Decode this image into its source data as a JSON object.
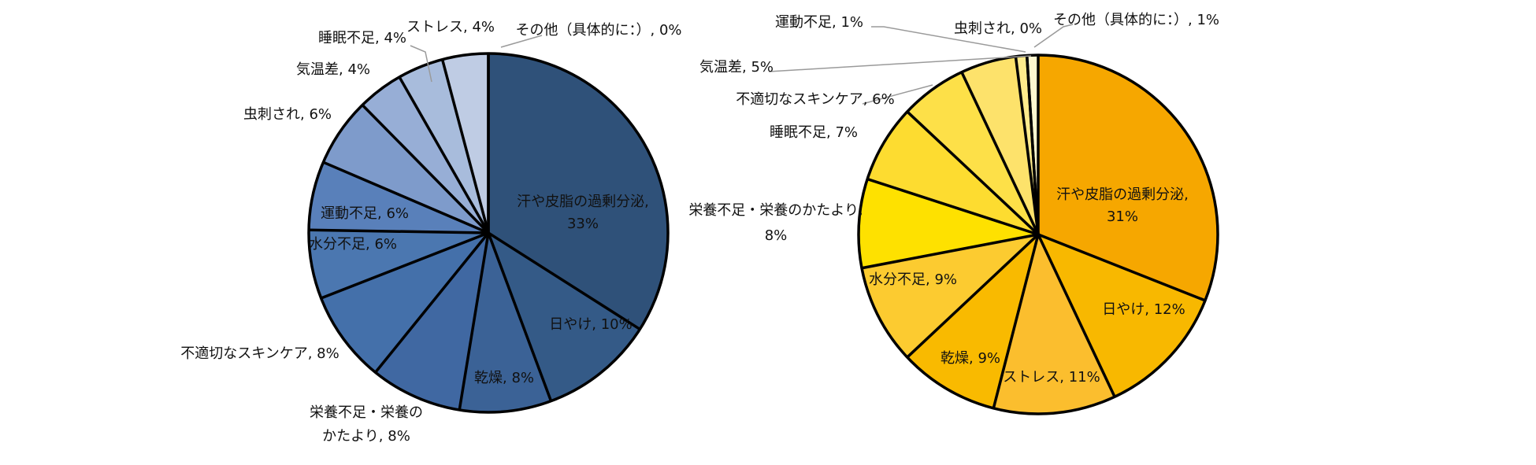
{
  "chart_data": [
    {
      "type": "pie",
      "slices": [
        {
          "label": "汗や皮脂の過剰分泌",
          "percent": 33,
          "label_text": [
            "汗や皮脂の過剰分泌,",
            "33%"
          ],
          "color": "#2F5179"
        },
        {
          "label": "日やけ",
          "percent": 10,
          "label_text": [
            "日やけ, 10%"
          ],
          "color": "#345A87"
        },
        {
          "label": "乾燥",
          "percent": 8,
          "label_text": [
            "乾燥, 8%"
          ],
          "color": "#3B6296"
        },
        {
          "label": "栄養不足・栄養のかたより",
          "percent": 8,
          "label_text": [
            "栄養不足・栄養の",
            "かたより, 8%"
          ],
          "color": "#4068A2"
        },
        {
          "label": "不適切なスキンケア",
          "percent": 8,
          "label_text": [
            "不適切なスキンケア, 8%"
          ],
          "color": "#4470AA"
        },
        {
          "label": "水分不足",
          "percent": 6,
          "label_text": [
            "水分不足, 6%"
          ],
          "color": "#4B77B0"
        },
        {
          "label": "運動不足",
          "percent": 6,
          "label_text": [
            "運動不足, 6%"
          ],
          "color": "#5980BA"
        },
        {
          "label": "虫刺され",
          "percent": 6,
          "label_text": [
            "虫刺され, 6%"
          ],
          "color": "#7E9BCB"
        },
        {
          "label": "気温差",
          "percent": 4,
          "label_text": [
            "気温差, 4%"
          ],
          "color": "#97AED6"
        },
        {
          "label": "睡眠不足",
          "percent": 4,
          "label_text": [
            "睡眠不足, 4%"
          ],
          "color": "#A8BCDC"
        },
        {
          "label": "ストレス",
          "percent": 4,
          "label_text": [
            "ストレス, 4%"
          ],
          "color": "#BFCCE4"
        },
        {
          "label": "その他（具体的に：）",
          "percent": 0,
          "label_text": [
            "その他（具体的に：）, 0%"
          ],
          "color": "#DCE3F0"
        }
      ]
    },
    {
      "type": "pie",
      "slices": [
        {
          "label": "汗や皮脂の過剰分泌",
          "percent": 31,
          "label_text": [
            "汗や皮脂の過剰分泌,",
            "31%"
          ],
          "color": "#F6A700"
        },
        {
          "label": "日やけ",
          "percent": 12,
          "label_text": [
            "日やけ, 12%"
          ],
          "color": "#F8B800"
        },
        {
          "label": "ストレス",
          "percent": 11,
          "label_text": [
            "ストレス, 11%"
          ],
          "color": "#FBBE2E"
        },
        {
          "label": "乾燥",
          "percent": 9,
          "label_text": [
            "乾燥, 9%"
          ],
          "color": "#F9BA00"
        },
        {
          "label": "水分不足",
          "percent": 9,
          "label_text": [
            "水分不足, 9%"
          ],
          "color": "#FCCB30"
        },
        {
          "label": "栄養不足・栄養のかたより",
          "percent": 8,
          "label_text": [
            "栄養不足・栄養のかたより,",
            "8%"
          ],
          "color": "#FEE100"
        },
        {
          "label": "睡眠不足",
          "percent": 7,
          "label_text": [
            "睡眠不足, 7%"
          ],
          "color": "#FDDC30"
        },
        {
          "label": "不適切なスキンケア",
          "percent": 6,
          "label_text": [
            "不適切なスキンケア, 6%"
          ],
          "color": "#FDE048"
        },
        {
          "label": "気温差",
          "percent": 5,
          "label_text": [
            "気温差, 5%"
          ],
          "color": "#FDE26B"
        },
        {
          "label": "運動不足",
          "percent": 1,
          "label_text": [
            "運動不足, 1%"
          ],
          "color": "#FEEB8C"
        },
        {
          "label": "虫刺され",
          "percent": 0,
          "label_text": [
            "虫刺され, 0%"
          ],
          "color": "#FFF3B0"
        },
        {
          "label": "その他（具体的に：）",
          "percent": 1,
          "label_text": [
            "その他（具体的に：）, 1%"
          ],
          "color": "#FFF8D0"
        }
      ]
    }
  ]
}
